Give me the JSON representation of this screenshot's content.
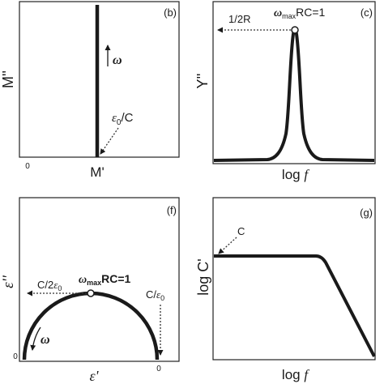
{
  "panel_b": {
    "tag": "(b)",
    "y_label": "M''",
    "x_label": "M'",
    "origin": "0",
    "arrow_label": "ω",
    "point_label_sym": "ε",
    "point_label_sub": "0",
    "point_label_tail": "/C"
  },
  "panel_c": {
    "tag": "(c)",
    "y_label": "Y''",
    "x_label_main": "log ",
    "x_label_var": "f",
    "peak_value": "1/2R",
    "peak_sym": "ω",
    "peak_sub": "max",
    "peak_tail": "RC=1"
  },
  "panel_f": {
    "tag": "(f)",
    "y_label": "ε''",
    "x_label": "ε'",
    "origin_left": "0",
    "origin_right": "0",
    "arrow_label": "ω",
    "peak_sym": "ω",
    "peak_sub": "max",
    "peak_tail": "RC=1",
    "top_value_pre": "C/2",
    "top_value_sym": "ε",
    "top_value_sub": "0",
    "right_value_pre": "C/",
    "right_value_sym": "ε",
    "right_value_sub": "0"
  },
  "panel_g": {
    "tag": "(g)",
    "y_label": "log C'",
    "x_label_main": "log ",
    "x_label_var": "f",
    "plateau_label": "C"
  },
  "colors": {
    "line": "#1a1a1a",
    "frame": "#222222",
    "dotted": "#333333"
  }
}
